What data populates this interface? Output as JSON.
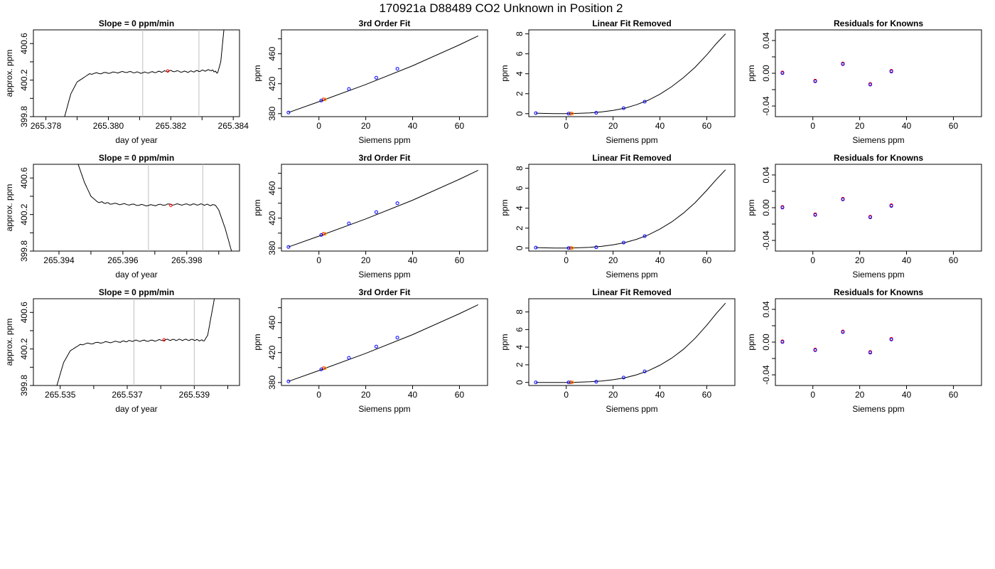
{
  "suptitle": "170921a     D88489   CO2 Unknown in Position  2",
  "chart_data": [
    {
      "type": "line",
      "title": "Slope =  0  ppm/min",
      "xlabel": "day of year",
      "ylabel": "approx. ppm",
      "xlim": [
        265.3776,
        265.3842
      ],
      "ylim": [
        399.8,
        400.75
      ],
      "xticks": [
        "265.378",
        "265.380",
        "265.382",
        "265.384"
      ],
      "yticks": [
        "399.8",
        "400.2",
        "400.6"
      ],
      "vlines": [
        265.3811,
        265.3829
      ],
      "x": [
        265.3786,
        265.3788,
        265.379,
        265.3794,
        265.38,
        265.3806,
        265.3811,
        265.3816,
        265.382,
        265.3825,
        265.3829,
        265.3833,
        265.3835,
        265.3836,
        265.3837
      ],
      "y": [
        399.8,
        400.05,
        400.18,
        400.27,
        400.28,
        400.29,
        400.28,
        400.29,
        400.3,
        400.29,
        400.3,
        400.31,
        400.28,
        400.4,
        400.75
      ],
      "marker_x": 265.3819,
      "marker_y": 400.3
    },
    {
      "type": "scatter",
      "title": "3rd Order Fit",
      "xlabel": "Siemens ppm",
      "ylabel": "ppm",
      "xlim": [
        -16,
        72
      ],
      "ylim": [
        376,
        492
      ],
      "xticks": [
        "0",
        "20",
        "40",
        "60"
      ],
      "yticks": [
        "380",
        "420",
        "460"
      ],
      "fit_x": [
        -13,
        0,
        20,
        40,
        60,
        68
      ],
      "fit_y": [
        381.5,
        396,
        419,
        444,
        472,
        484
      ],
      "x": [
        -13,
        1,
        12.8,
        24.5,
        33.5
      ],
      "y": [
        381.5,
        397.5,
        413,
        428,
        440
      ],
      "unknown_x": 2,
      "unknown_y": 399
    },
    {
      "type": "scatter",
      "title": "Linear Fit Removed",
      "xlabel": "Siemens ppm",
      "ylabel": "ppm",
      "xlim": [
        -16,
        72
      ],
      "ylim": [
        -0.3,
        8.4
      ],
      "xticks": [
        "0",
        "20",
        "40",
        "60"
      ],
      "yticks": [
        "0",
        "2",
        "4",
        "6",
        "8"
      ],
      "fit_x": [
        -13,
        -5,
        0,
        5,
        10,
        15,
        20,
        25,
        30,
        35,
        40,
        45,
        50,
        55,
        60,
        64,
        68
      ],
      "fit_y": [
        0.05,
        0.0,
        0.0,
        0.03,
        0.08,
        0.17,
        0.32,
        0.55,
        0.9,
        1.35,
        1.95,
        2.7,
        3.6,
        4.65,
        5.9,
        7.0,
        8.0
      ],
      "x": [
        -13,
        1,
        12.8,
        24.5,
        33.5
      ],
      "y": [
        0.05,
        0.0,
        0.08,
        0.55,
        1.2
      ],
      "unknown_x": 2,
      "unknown_y": 0.0
    },
    {
      "type": "scatter",
      "title": "Residuals for Knowns",
      "xlabel": "Siemens ppm",
      "ylabel": "ppm",
      "xlim": [
        -16,
        72
      ],
      "ylim": [
        -0.053,
        0.053
      ],
      "xticks": [
        "0",
        "20",
        "40",
        "60"
      ],
      "yticks": [
        "-0.04",
        "0.00",
        "0.04"
      ],
      "x": [
        -13,
        1,
        12.8,
        24.5,
        33.5
      ],
      "y": [
        0.001,
        -0.009,
        0.012,
        -0.013,
        0.003
      ]
    },
    {
      "type": "line",
      "title": "Slope =  0  ppm/min",
      "xlabel": "day of year",
      "ylabel": "approx. ppm",
      "xlim": [
        265.3932,
        265.39965
      ],
      "ylim": [
        399.8,
        400.75
      ],
      "xticks": [
        "265.394",
        "265.396",
        "265.398"
      ],
      "yticks": [
        "399.8",
        "400.2",
        "400.6"
      ],
      "vlines": [
        265.3968,
        265.3985
      ],
      "x": [
        265.3946,
        265.3948,
        265.395,
        265.3952,
        265.3956,
        265.3962,
        265.3968,
        265.3974,
        265.398,
        265.3985,
        265.3989,
        265.399,
        265.3992,
        265.3994
      ],
      "y": [
        400.75,
        400.55,
        400.4,
        400.34,
        400.32,
        400.31,
        400.3,
        400.31,
        400.31,
        400.31,
        400.3,
        400.25,
        400.05,
        399.8
      ],
      "marker_x": 265.3975,
      "marker_y": 400.3
    },
    {
      "type": "scatter",
      "title": "3rd Order Fit",
      "xlabel": "Siemens ppm",
      "ylabel": "ppm",
      "xlim": [
        -16,
        72
      ],
      "ylim": [
        376,
        492
      ],
      "xticks": [
        "0",
        "20",
        "40",
        "60"
      ],
      "yticks": [
        "380",
        "420",
        "460"
      ],
      "fit_x": [
        -13,
        0,
        20,
        40,
        60,
        68
      ],
      "fit_y": [
        381.5,
        396,
        419,
        444,
        472,
        484
      ],
      "x": [
        -13,
        1,
        12.8,
        24.5,
        33.5
      ],
      "y": [
        381.5,
        397.5,
        413,
        428,
        440
      ],
      "unknown_x": 2,
      "unknown_y": 399
    },
    {
      "type": "scatter",
      "title": "Linear Fit Removed",
      "xlabel": "Siemens ppm",
      "ylabel": "ppm",
      "xlim": [
        -16,
        72
      ],
      "ylim": [
        -0.3,
        8.4
      ],
      "xticks": [
        "0",
        "20",
        "40",
        "60"
      ],
      "yticks": [
        "0",
        "2",
        "4",
        "6",
        "8"
      ],
      "fit_x": [
        -13,
        -5,
        0,
        5,
        10,
        15,
        20,
        25,
        30,
        35,
        40,
        45,
        50,
        55,
        60,
        64,
        68
      ],
      "fit_y": [
        0.05,
        0.0,
        0.0,
        0.03,
        0.08,
        0.17,
        0.32,
        0.55,
        0.88,
        1.32,
        1.9,
        2.62,
        3.5,
        4.55,
        5.8,
        6.85,
        7.85
      ],
      "x": [
        -13,
        1,
        12.8,
        24.5,
        33.5
      ],
      "y": [
        0.05,
        0.0,
        0.08,
        0.55,
        1.2
      ],
      "unknown_x": 2,
      "unknown_y": 0.0
    },
    {
      "type": "scatter",
      "title": "Residuals for Knowns",
      "xlabel": "Siemens ppm",
      "ylabel": "ppm",
      "xlim": [
        -16,
        72
      ],
      "ylim": [
        -0.053,
        0.053
      ],
      "xticks": [
        "0",
        "20",
        "40",
        "60"
      ],
      "yticks": [
        "-0.04",
        "0.00",
        "0.04"
      ],
      "x": [
        -13,
        1,
        12.8,
        24.5,
        33.5
      ],
      "y": [
        0.001,
        -0.008,
        0.011,
        -0.011,
        0.003
      ]
    },
    {
      "type": "line",
      "title": "Slope =  0  ppm/min",
      "xlabel": "day of year",
      "ylabel": "approx. ppm",
      "xlim": [
        265.5342,
        265.54035
      ],
      "ylim": [
        399.8,
        400.75
      ],
      "xticks": [
        "265.535",
        "265.537",
        "265.539"
      ],
      "yticks": [
        "399.8",
        "400.2",
        "400.6"
      ],
      "vlines": [
        265.5372,
        265.539
      ],
      "x": [
        265.5349,
        265.5351,
        265.5353,
        265.5356,
        265.5362,
        265.5368,
        265.5372,
        265.5377,
        265.5382,
        265.5386,
        265.539,
        265.5393,
        265.5394,
        265.5395,
        265.5396
      ],
      "y": [
        399.8,
        400.05,
        400.18,
        400.25,
        400.27,
        400.28,
        400.29,
        400.29,
        400.3,
        400.3,
        400.3,
        400.29,
        400.35,
        400.55,
        400.75
      ],
      "marker_x": 265.5381,
      "marker_y": 400.3
    },
    {
      "type": "scatter",
      "title": "3rd Order Fit",
      "xlabel": "Siemens ppm",
      "ylabel": "ppm",
      "xlim": [
        -16,
        72
      ],
      "ylim": [
        376,
        492
      ],
      "xticks": [
        "0",
        "20",
        "40",
        "60"
      ],
      "yticks": [
        "380",
        "420",
        "460"
      ],
      "fit_x": [
        -13,
        0,
        20,
        40,
        60,
        68
      ],
      "fit_y": [
        381.5,
        396,
        419,
        444,
        472,
        484
      ],
      "x": [
        -13,
        1,
        12.8,
        24.5,
        33.5
      ],
      "y": [
        381.5,
        397.5,
        413,
        428,
        440
      ],
      "unknown_x": 2,
      "unknown_y": 399
    },
    {
      "type": "scatter",
      "title": "Linear Fit Removed",
      "xlabel": "Siemens ppm",
      "ylabel": "ppm",
      "xlim": [
        -16,
        72
      ],
      "ylim": [
        -0.35,
        9.5
      ],
      "xticks": [
        "0",
        "20",
        "40",
        "60"
      ],
      "yticks": [
        "0",
        "2",
        "4",
        "6",
        "8"
      ],
      "fit_x": [
        -13,
        -5,
        0,
        5,
        10,
        15,
        20,
        25,
        30,
        35,
        40,
        45,
        50,
        55,
        60,
        64,
        68
      ],
      "fit_y": [
        0.0,
        0.0,
        0.0,
        0.02,
        0.07,
        0.15,
        0.3,
        0.52,
        0.86,
        1.32,
        1.95,
        2.75,
        3.75,
        5.0,
        6.5,
        7.8,
        9.0
      ],
      "x": [
        -13,
        1,
        12.8,
        24.5,
        33.5
      ],
      "y": [
        0.0,
        0.0,
        0.08,
        0.55,
        1.25
      ],
      "unknown_x": 2,
      "unknown_y": 0.0
    },
    {
      "type": "scatter",
      "title": "Residuals for Knowns",
      "xlabel": "Siemens ppm",
      "ylabel": "ppm",
      "xlim": [
        -16,
        72
      ],
      "ylim": [
        -0.053,
        0.053
      ],
      "xticks": [
        "0",
        "20",
        "40",
        "60"
      ],
      "yticks": [
        "-0.04",
        "0.00",
        "0.04"
      ],
      "x": [
        -13,
        1,
        12.8,
        24.5,
        33.5
      ],
      "y": [
        0.001,
        -0.009,
        0.013,
        -0.012,
        0.004
      ]
    }
  ]
}
